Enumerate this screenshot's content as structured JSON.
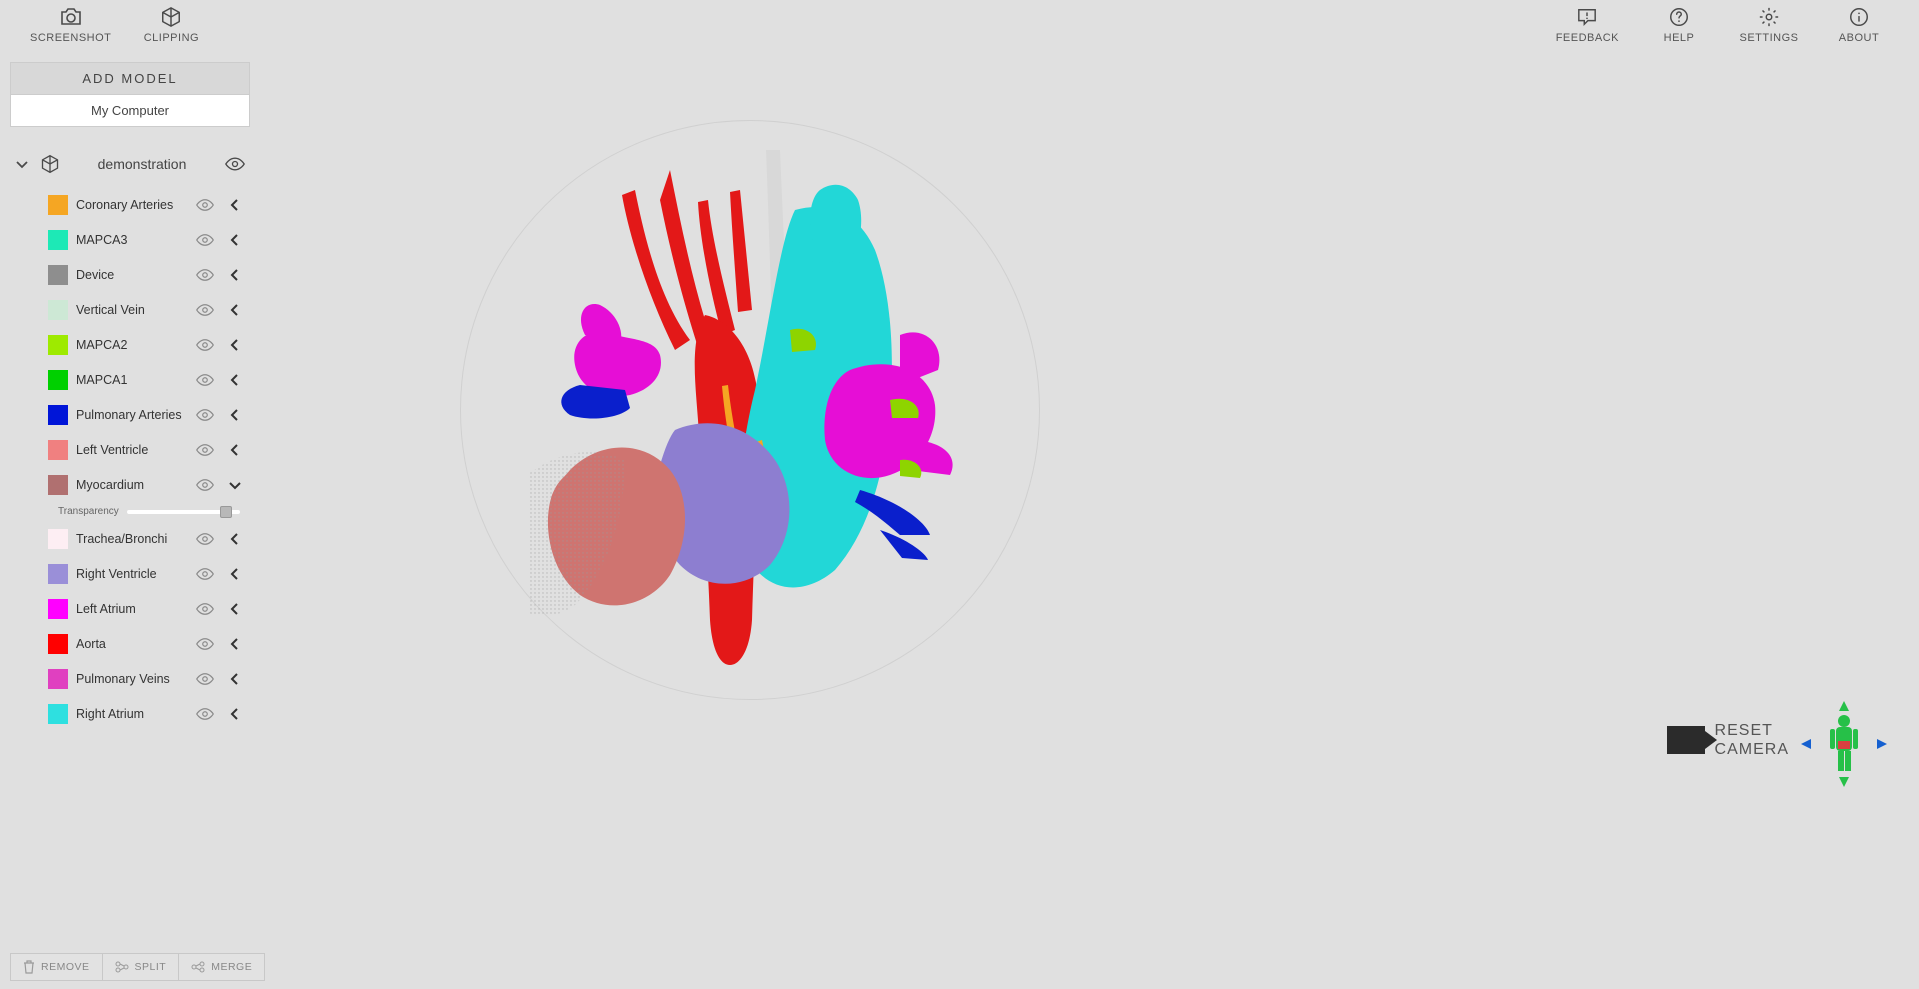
{
  "toolbar": {
    "left": [
      {
        "key": "screenshot",
        "label": "SCREENSHOT"
      },
      {
        "key": "clipping",
        "label": "CLIPPING"
      }
    ],
    "right": [
      {
        "key": "feedback",
        "label": "FEEDBACK"
      },
      {
        "key": "help",
        "label": "HELP"
      },
      {
        "key": "settings",
        "label": "SETTINGS"
      },
      {
        "key": "about",
        "label": "ABOUT"
      }
    ]
  },
  "sidebar": {
    "add_model_label": "ADD MODEL",
    "my_computer_label": "My Computer",
    "model_name": "demonstration",
    "transparency_label": "Transparency",
    "transparency_value_pct": 88,
    "layers": [
      {
        "label": "Coronary Arteries",
        "color": "#f5a623",
        "expanded": false
      },
      {
        "label": "MAPCA3",
        "color": "#1de9b6",
        "expanded": false
      },
      {
        "label": "Device",
        "color": "#8e8e8e",
        "expanded": false
      },
      {
        "label": "Vertical Vein",
        "color": "#cde8d5",
        "expanded": false
      },
      {
        "label": "MAPCA2",
        "color": "#9eea00",
        "expanded": false
      },
      {
        "label": "MAPCA1",
        "color": "#00d000",
        "expanded": false
      },
      {
        "label": "Pulmonary Arteries",
        "color": "#0015d8",
        "expanded": false
      },
      {
        "label": "Left Ventricle",
        "color": "#f08080",
        "expanded": false
      },
      {
        "label": "Myocardium",
        "color": "#b07070",
        "expanded": true
      },
      {
        "label": "Trachea/Bronchi",
        "color": "#fdeef3",
        "expanded": false
      },
      {
        "label": "Right Ventricle",
        "color": "#9a8fd8",
        "expanded": false
      },
      {
        "label": "Left Atrium",
        "color": "#ff00ff",
        "expanded": false
      },
      {
        "label": "Aorta",
        "color": "#ff0000",
        "expanded": false
      },
      {
        "label": "Pulmonary Veins",
        "color": "#e040c0",
        "expanded": false
      },
      {
        "label": "Right Atrium",
        "color": "#2ee0e0",
        "expanded": false
      }
    ]
  },
  "bottom": {
    "remove": "REMOVE",
    "split": "SPLIT",
    "merge": "MERGE"
  },
  "reset_camera": {
    "line1": "RESET",
    "line2": "CAMERA"
  },
  "viewport": {
    "background": "#e0e0e0",
    "orbit_circle_color": "#d0d0d0",
    "heart_colors": {
      "aorta": "#e31818",
      "right_atrium": "#22d7d7",
      "left_atrium": "#e60ed6",
      "right_ventricle": "#8d7ed0",
      "left_ventricle": "#cf7470",
      "trachea": "#d8d8d8",
      "pulm_arteries": "#0a1fcc",
      "mapca": "#8ed400",
      "coronary": "#f5a623"
    }
  },
  "icons": {
    "stroke": "#4a4a4a",
    "muted": "#9a9a9a"
  }
}
